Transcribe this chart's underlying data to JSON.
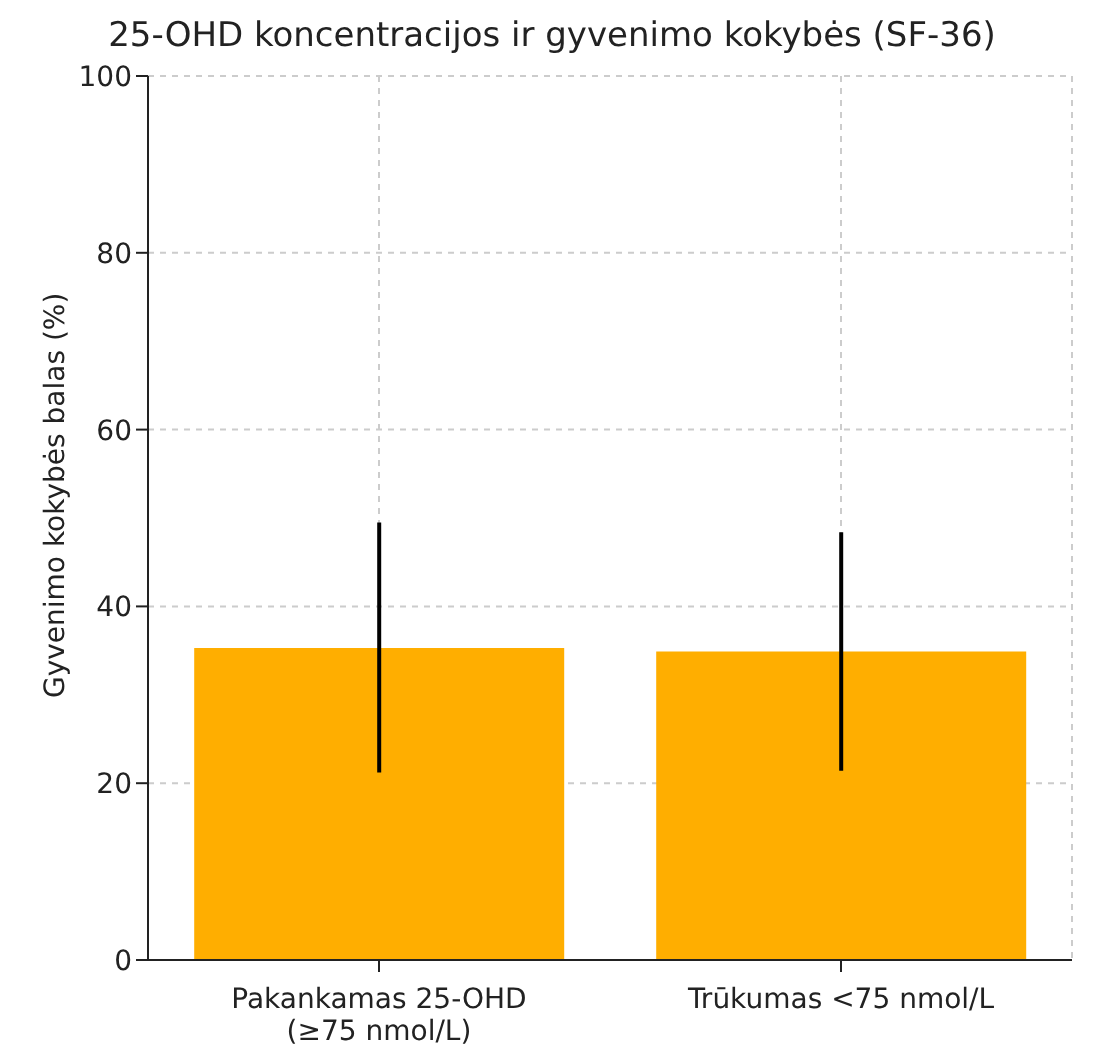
{
  "chart_data": {
    "type": "bar",
    "title": "25-OHD koncentracijos ir gyvenimo kokybės (SF-36)",
    "ylabel": "Gyvenimo kokybės balas (%)",
    "categories": [
      "Pakankamas 25-OHD (≥75 nmol/L)",
      "Trūkumas <75 nmol/L"
    ],
    "values": [
      35.3,
      34.9
    ],
    "color": "#ffae00",
    "errors": [
      [
        21.2,
        49.5
      ],
      [
        21.4,
        48.4
      ]
    ],
    "ylim": [
      0,
      100
    ],
    "yticks": [
      0,
      20,
      40,
      60,
      80,
      100
    ],
    "grid": true
  }
}
